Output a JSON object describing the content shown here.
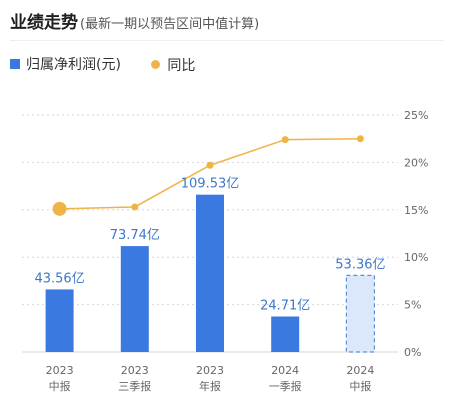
{
  "header": {
    "title": "业绩走势",
    "subtitle": "(最新一期以预告区间中值计算)"
  },
  "legend": {
    "bar_label": "归属净利润(元)",
    "line_label": "同比"
  },
  "colors": {
    "bar": "#3a7ae0",
    "bar_label": "#3b78c9",
    "line": "#f0b347",
    "forecast_fill": "#dbe8fb",
    "forecast_border": "#5b8fd6",
    "grid": "#d6d6d6",
    "tick": "#666666"
  },
  "chart_data": {
    "type": "bar",
    "categories": [
      [
        "2023",
        "中报"
      ],
      [
        "2023",
        "三季报"
      ],
      [
        "2023",
        "年报"
      ],
      [
        "2024",
        "一季报"
      ],
      [
        "2024",
        "中报"
      ]
    ],
    "series": [
      {
        "name": "归属净利润(元)",
        "type": "bar",
        "values": [
          43.56,
          73.74,
          109.53,
          24.71,
          53.36
        ],
        "labels": [
          "43.56亿",
          "73.74亿",
          "109.53亿",
          "24.71亿",
          "53.36亿"
        ],
        "forecast": [
          false,
          false,
          false,
          false,
          true
        ],
        "bar_axis_max": 165
      },
      {
        "name": "同比",
        "type": "line",
        "axis": "right",
        "values": [
          15.1,
          15.3,
          19.7,
          22.4,
          22.5
        ],
        "highlight_index": 0
      }
    ],
    "y_right": {
      "ticks": [
        "0%",
        "5%",
        "10%",
        "15%",
        "20%",
        "25%"
      ],
      "range": [
        0,
        25
      ]
    },
    "grid": true,
    "legend": "top-left"
  }
}
